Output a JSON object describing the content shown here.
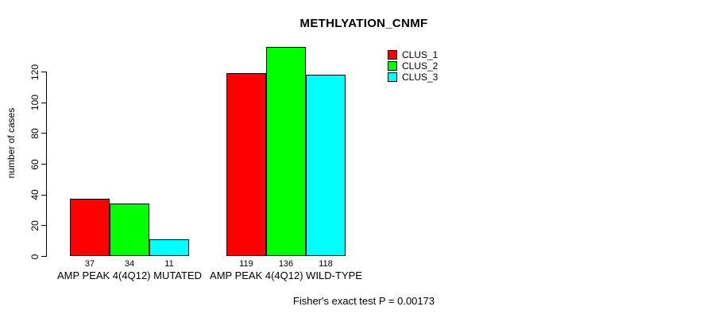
{
  "chart_data": {
    "type": "bar",
    "title": "METHLYATION_CNMF",
    "xlabel": "",
    "ylabel": "number of cases",
    "yticks": [
      0,
      20,
      40,
      60,
      80,
      100,
      120
    ],
    "ylim": [
      0,
      140
    ],
    "grid": false,
    "legend_position": "top-right",
    "bar_border_color": "#000000",
    "categories": [
      "AMP PEAK 4(4Q12) MUTATED",
      "AMP PEAK 4(4Q12) WILD-TYPE"
    ],
    "series": [
      {
        "name": "CLUS_1",
        "color": "#ff0000",
        "values": [
          37,
          119
        ]
      },
      {
        "name": "CLUS_2",
        "color": "#00ff00",
        "values": [
          34,
          136
        ]
      },
      {
        "name": "CLUS_3",
        "color": "#00ffff",
        "values": [
          11,
          118
        ]
      }
    ],
    "groups": [
      {
        "label": "AMP PEAK 4(4Q12) MUTATED",
        "values": [
          37,
          34,
          11
        ]
      },
      {
        "label": "AMP PEAK 4(4Q12) WILD-TYPE",
        "values": [
          119,
          136,
          118
        ]
      }
    ],
    "annotation": "Fisher's exact test P = 0.00173"
  }
}
